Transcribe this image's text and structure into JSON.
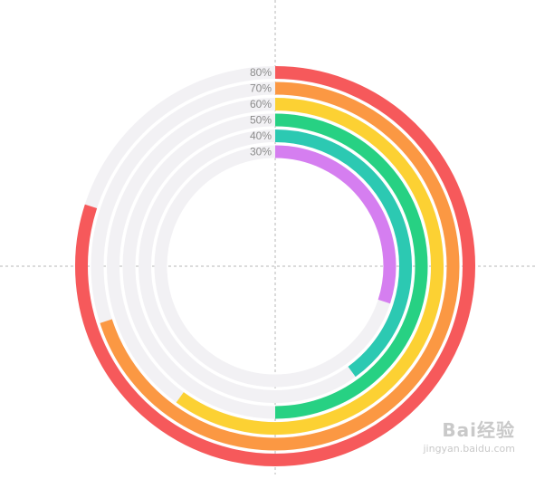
{
  "chart_data": {
    "type": "radial-bar",
    "title": "",
    "series": [
      {
        "label": "80%",
        "value": 80,
        "color": "#f6595b"
      },
      {
        "label": "70%",
        "value": 70,
        "color": "#fb9843"
      },
      {
        "label": "60%",
        "value": 60,
        "color": "#fcd133"
      },
      {
        "label": "50%",
        "value": 50,
        "color": "#27d183"
      },
      {
        "label": "40%",
        "value": 40,
        "color": "#2cc9b2"
      },
      {
        "label": "30%",
        "value": 30,
        "color": "#d57ef0"
      }
    ],
    "track_color": "#f2f1f4",
    "guide_lines": "dashed",
    "guide_color": "#b7b7b7",
    "max": 100
  },
  "watermark": {
    "text": "Bai经验",
    "subtext": "jingyan.baidu.com"
  }
}
